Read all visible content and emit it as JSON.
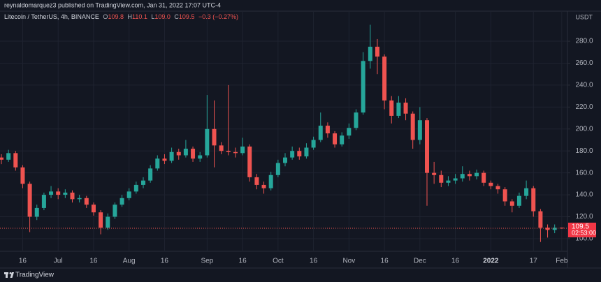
{
  "header": {
    "text": "reynaldomarquez3 published on TradingView.com, Jan 31, 2022 17:07 UTC-4"
  },
  "footer": {
    "brand": "TradingView"
  },
  "chart_data": {
    "type": "candlestick",
    "legend": {
      "symbol": "Litecoin / TetherUS, 4h, BINANCE",
      "ohlc": [
        {
          "label": "O",
          "value": "109.8"
        },
        {
          "label": "H",
          "value": "110.1"
        },
        {
          "label": "L",
          "value": "109.0"
        },
        {
          "label": "C",
          "value": "109.5"
        }
      ],
      "change": "−0.3 (−0.27%)"
    },
    "currency": "USDT",
    "last_price": 109.5,
    "countdown": "02:53:00",
    "up_color": "#26a69a",
    "down_color": "#ef5350",
    "grid": true,
    "ylim": [
      88.5,
      307.4
    ],
    "yticks": [
      {
        "value": 100,
        "label": "100.0"
      },
      {
        "value": 120,
        "label": "120.0"
      },
      {
        "value": 140,
        "label": "140.0"
      },
      {
        "value": 160,
        "label": "160.0"
      },
      {
        "value": 180,
        "label": "180.0"
      },
      {
        "value": 200,
        "label": "200.0"
      },
      {
        "value": 220,
        "label": "220.0"
      },
      {
        "value": 240,
        "label": "240.0"
      },
      {
        "value": 260,
        "label": "260.0"
      },
      {
        "value": 280,
        "label": "280.0"
      }
    ],
    "categories": [
      null,
      null,
      null,
      "16",
      null,
      null,
      null,
      null,
      "Jul",
      null,
      null,
      null,
      null,
      "16",
      null,
      null,
      null,
      null,
      "Aug",
      null,
      null,
      null,
      null,
      "16",
      null,
      null,
      null,
      null,
      null,
      "Sep",
      null,
      null,
      null,
      null,
      "16",
      null,
      null,
      null,
      null,
      "Oct",
      null,
      null,
      null,
      null,
      "16",
      null,
      null,
      null,
      null,
      "Nov",
      null,
      null,
      null,
      null,
      "16",
      null,
      null,
      null,
      null,
      "Dec",
      null,
      null,
      null,
      null,
      "16",
      null,
      null,
      null,
      null,
      "2022",
      null,
      null,
      null,
      null,
      null,
      "17",
      null,
      null,
      null,
      "Feb"
    ],
    "open": [
      174,
      172,
      178,
      165,
      150,
      120,
      128,
      140,
      143,
      140,
      142,
      136,
      137,
      131,
      124,
      110,
      120,
      131,
      137,
      143,
      149,
      153,
      164,
      173,
      171,
      179,
      176,
      182,
      173,
      176,
      200,
      185,
      180,
      179,
      178,
      184,
      156,
      149,
      146,
      158,
      169,
      174,
      180,
      175,
      183,
      190,
      203,
      196,
      186,
      194,
      201,
      215,
      262,
      275,
      266,
      226,
      212,
      224,
      214,
      190,
      208,
      160,
      158,
      151,
      153,
      155,
      159,
      157,
      160,
      151,
      148,
      145,
      134,
      130,
      139,
      146,
      125,
      110,
      108,
      110
    ],
    "high": [
      177,
      181,
      180,
      167,
      152,
      131,
      142,
      148,
      146,
      145,
      144,
      140,
      139,
      133,
      126,
      123,
      133,
      140,
      146,
      152,
      156,
      167,
      176,
      177,
      183,
      182,
      190,
      184,
      179,
      231,
      226,
      188,
      240,
      183,
      192,
      186,
      159,
      152,
      161,
      172,
      178,
      184,
      183,
      187,
      193,
      215,
      206,
      198,
      197,
      205,
      218,
      270,
      295,
      282,
      268,
      230,
      230,
      228,
      216,
      220,
      210,
      170,
      162,
      157,
      159,
      166,
      162,
      163,
      162,
      153,
      150,
      147,
      136,
      142,
      153,
      148,
      127,
      113,
      113,
      110.1
    ],
    "low": [
      168,
      170,
      162,
      146,
      106,
      117,
      126,
      137,
      136,
      137,
      133,
      133,
      128,
      121,
      104,
      108,
      118,
      129,
      135,
      141,
      146,
      151,
      162,
      168,
      169,
      172,
      174,
      170,
      170,
      174,
      165,
      177,
      176,
      174,
      176,
      152,
      145,
      141,
      144,
      156,
      166,
      172,
      172,
      173,
      181,
      188,
      192,
      183,
      184,
      191,
      199,
      213,
      255,
      250,
      218,
      205,
      210,
      208,
      182,
      186,
      130,
      150,
      147,
      148,
      150,
      152,
      153,
      154,
      148,
      145,
      141,
      130,
      124,
      128,
      136,
      120,
      97,
      101,
      105,
      109.0
    ],
    "close": [
      172,
      178,
      165,
      150,
      120,
      128,
      140,
      143,
      140,
      142,
      136,
      137,
      131,
      124,
      110,
      120,
      131,
      137,
      143,
      149,
      153,
      164,
      173,
      171,
      179,
      176,
      182,
      173,
      176,
      200,
      185,
      180,
      179,
      178,
      184,
      156,
      149,
      146,
      158,
      169,
      174,
      180,
      175,
      183,
      190,
      203,
      196,
      186,
      194,
      201,
      215,
      262,
      275,
      266,
      226,
      212,
      224,
      214,
      190,
      208,
      160,
      158,
      151,
      153,
      155,
      159,
      157,
      160,
      151,
      148,
      145,
      134,
      130,
      139,
      146,
      125,
      110,
      108,
      110,
      109.5
    ]
  }
}
